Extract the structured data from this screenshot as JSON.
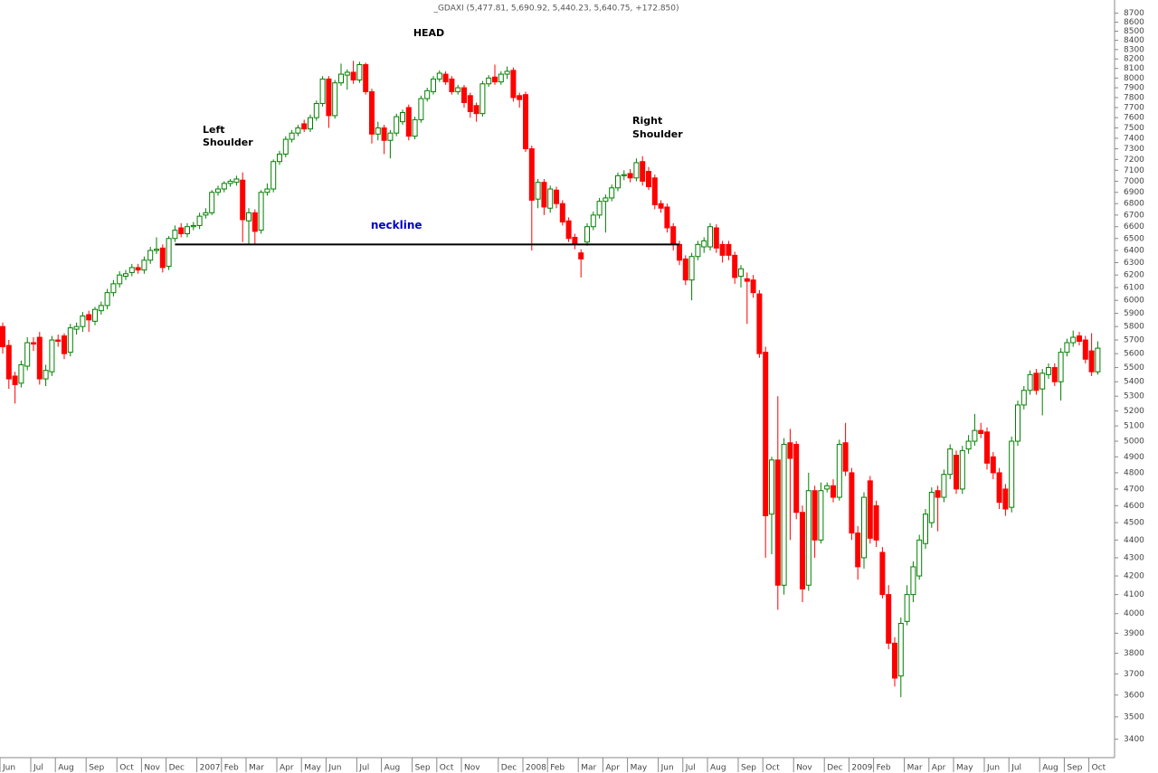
{
  "chart_data": {
    "type": "candlestick",
    "title": "_GDAXI (5,477.81, 5,690.92, 5,440.23, 5,640.75, +172.850)",
    "annotations": {
      "head": "HEAD",
      "left_shoulder": [
        "Left",
        "Shoulder"
      ],
      "right_shoulder": [
        "Right",
        "Shoulder"
      ]
    },
    "neckline": {
      "label": "neckline",
      "value": 6450,
      "start": 28,
      "end": 110,
      "color": "#000000",
      "label_color": "#0000cc"
    },
    "log_scale": true,
    "up_color": "#008000",
    "down_color": "#ff0000",
    "ylim": [
      3320,
      8850
    ],
    "yticks": [
      3400,
      3500,
      3600,
      3700,
      3800,
      3900,
      4000,
      4100,
      4200,
      4300,
      4400,
      4500,
      4600,
      4700,
      4800,
      4900,
      5000,
      5100,
      5200,
      5300,
      5400,
      5500,
      5600,
      5700,
      5800,
      5900,
      6000,
      6100,
      6200,
      6300,
      6400,
      6500,
      6600,
      6700,
      6800,
      6900,
      7000,
      7100,
      7200,
      7300,
      7400,
      7500,
      7600,
      7700,
      7800,
      7900,
      8000,
      8100,
      8200,
      8300,
      8400,
      8500,
      8600,
      8700
    ],
    "categories": [
      "Jun",
      null,
      null,
      null,
      null,
      "Jul",
      null,
      null,
      null,
      "Aug",
      null,
      null,
      null,
      null,
      "Sep",
      null,
      null,
      null,
      null,
      "Oct",
      null,
      null,
      null,
      "Nov",
      null,
      null,
      null,
      "Dec",
      null,
      null,
      null,
      null,
      "2007",
      null,
      null,
      null,
      "Feb",
      null,
      null,
      null,
      "Mar",
      null,
      null,
      null,
      null,
      "Apr",
      null,
      null,
      null,
      "May",
      null,
      null,
      null,
      "Jun",
      null,
      null,
      null,
      null,
      "Jul",
      null,
      null,
      null,
      "Aug",
      null,
      null,
      null,
      null,
      "Sep",
      null,
      null,
      null,
      "Oct",
      null,
      null,
      null,
      "Nov",
      null,
      null,
      null,
      null,
      null,
      "Dec",
      null,
      null,
      null,
      "2008",
      null,
      null,
      null,
      "Feb",
      null,
      null,
      null,
      null,
      "Mar",
      null,
      null,
      null,
      "Apr",
      null,
      null,
      null,
      "May",
      null,
      null,
      null,
      null,
      "Jun",
      null,
      null,
      null,
      "Jul",
      null,
      null,
      null,
      "Aug",
      null,
      null,
      null,
      null,
      "Sep",
      null,
      null,
      null,
      "Oct",
      null,
      null,
      null,
      null,
      "Nov",
      null,
      null,
      null,
      null,
      "Dec",
      null,
      null,
      null,
      "2009",
      null,
      null,
      null,
      "Feb",
      null,
      null,
      null,
      null,
      "Mar",
      null,
      null,
      null,
      "Apr",
      null,
      null,
      null,
      "May",
      null,
      null,
      null,
      null,
      "Jun",
      null,
      null,
      null,
      "Jul",
      null,
      null,
      null,
      null,
      "Aug",
      null,
      null,
      null,
      "Sep",
      null,
      null,
      null,
      "Oct",
      null
    ],
    "open": [
      5800,
      5660,
      5440,
      5390,
      5510,
      5680,
      5720,
      5420,
      5470,
      5700,
      5730,
      5610,
      5780,
      5800,
      5890,
      5840,
      5920,
      5960,
      6060,
      6130,
      6190,
      6220,
      6260,
      6240,
      6320,
      6400,
      6420,
      6270,
      6500,
      6590,
      6540,
      6600,
      6610,
      6700,
      6720,
      6900,
      6930,
      6980,
      6990,
      7010,
      6650,
      6720,
      6570,
      6900,
      6930,
      7180,
      7250,
      7390,
      7450,
      7540,
      7490,
      7600,
      7740,
      7990,
      7620,
      7950,
      8030,
      8060,
      7980,
      8140,
      7860,
      7440,
      7500,
      7380,
      7450,
      7560,
      7700,
      7420,
      7580,
      7790,
      7860,
      7990,
      8040,
      7990,
      7860,
      7900,
      7820,
      7720,
      7640,
      7940,
      8010,
      7960,
      8040,
      8080,
      7820,
      7830,
      7300,
      6840,
      6990,
      6760,
      6920,
      6800,
      6650,
      6510,
      6380,
      6470,
      6600,
      6700,
      6820,
      6850,
      6940,
      7050,
      7070,
      7030,
      7180,
      7090,
      7030,
      6800,
      6770,
      6600,
      6450,
      6330,
      6160,
      6350,
      6430,
      6430,
      6590,
      6450,
      6450,
      6360,
      6190,
      6170,
      6160,
      6050,
      5610,
      4550,
      4880,
      4150,
      4990,
      4980,
      4560,
      4150,
      4690,
      4400,
      4700,
      4720,
      4650,
      4990,
      4800,
      4440,
      4300,
      4750,
      4600,
      4330,
      4100,
      3850,
      3690,
      3960,
      4100,
      4200,
      4380,
      4500,
      4690,
      4650,
      4790,
      4910,
      4700,
      4950,
      5000,
      5070,
      5060,
      4900,
      4800,
      4700,
      4590,
      5000,
      5240,
      5340,
      5460,
      5350,
      5450,
      5500,
      5400,
      5610,
      5680,
      5730,
      5700,
      5620,
      5470
    ],
    "high": [
      5830,
      5700,
      5470,
      5550,
      5720,
      5720,
      5760,
      5520,
      5730,
      5740,
      5750,
      5820,
      5830,
      5910,
      5920,
      5950,
      5990,
      6090,
      6160,
      6230,
      6240,
      6290,
      6290,
      6350,
      6430,
      6510,
      6450,
      6520,
      6610,
      6630,
      6630,
      6640,
      6720,
      6760,
      6920,
      6960,
      7000,
      7020,
      7050,
      7080,
      6760,
      6750,
      6920,
      6980,
      7200,
      7280,
      7420,
      7480,
      7530,
      7580,
      7630,
      7770,
      8020,
      8020,
      7980,
      8150,
      8090,
      8180,
      8170,
      8160,
      7890,
      7560,
      7530,
      7480,
      7640,
      7680,
      7730,
      7610,
      7820,
      7900,
      8020,
      8080,
      8070,
      8020,
      7930,
      7930,
      7850,
      7750,
      7970,
      8030,
      8140,
      8070,
      8120,
      8110,
      7850,
      7860,
      7330,
      7020,
      7020,
      6960,
      6950,
      6830,
      6680,
      6540,
      6410,
      6630,
      6730,
      6850,
      6880,
      6970,
      7080,
      7100,
      7110,
      7210,
      7230,
      7130,
      7060,
      6830,
      6800,
      6630,
      6480,
      6360,
      6380,
      6480,
      6510,
      6630,
      6620,
      6480,
      6480,
      6390,
      6280,
      6220,
      6200,
      6080,
      5650,
      4900,
      5300,
      5020,
      5080,
      5000,
      4600,
      4800,
      4720,
      4740,
      4740,
      4760,
      5010,
      5120,
      4830,
      4480,
      4680,
      4780,
      4630,
      4360,
      4150,
      3880,
      3980,
      4150,
      4280,
      4430,
      4580,
      4710,
      4720,
      4820,
      4980,
      4940,
      4970,
      5040,
      5180,
      5120,
      5090,
      4930,
      4830,
      4730,
      5030,
      5270,
      5370,
      5480,
      5490,
      5490,
      5530,
      5530,
      5640,
      5710,
      5770,
      5760,
      5730,
      5750,
      5690
    ],
    "low": [
      5600,
      5350,
      5250,
      5360,
      5480,
      5620,
      5380,
      5370,
      5440,
      5650,
      5560,
      5580,
      5740,
      5760,
      5760,
      5810,
      5890,
      5930,
      6030,
      6100,
      6160,
      6190,
      6210,
      6210,
      6290,
      6370,
      6220,
      6240,
      6470,
      6510,
      6510,
      6570,
      6580,
      6670,
      6700,
      6870,
      6900,
      6950,
      6960,
      6470,
      6450,
      6450,
      6540,
      6870,
      6900,
      7150,
      7220,
      7360,
      7420,
      7460,
      7460,
      7570,
      7710,
      7500,
      7590,
      7920,
      7880,
      7940,
      7950,
      7830,
      7350,
      7380,
      7250,
      7210,
      7420,
      7530,
      7380,
      7390,
      7550,
      7760,
      7830,
      7960,
      7930,
      7830,
      7830,
      7700,
      7600,
      7560,
      7610,
      7910,
      7930,
      7930,
      7990,
      7760,
      7700,
      7270,
      6400,
      6760,
      6700,
      6720,
      6760,
      6610,
      6470,
      6410,
      6180,
      6440,
      6570,
      6670,
      6550,
      6820,
      6910,
      7010,
      6990,
      7000,
      6960,
      6920,
      6750,
      6720,
      6550,
      6400,
      6280,
      6120,
      6000,
      6320,
      6380,
      6400,
      6380,
      6300,
      6320,
      6130,
      6100,
      5820,
      6020,
      5570,
      4300,
      4320,
      4020,
      4100,
      4400,
      4520,
      4060,
      4120,
      4300,
      4380,
      4680,
      4620,
      4630,
      4780,
      4400,
      4180,
      4240,
      4380,
      4360,
      4080,
      3820,
      3640,
      3590,
      3940,
      4060,
      4180,
      4350,
      4470,
      4450,
      4620,
      4760,
      4670,
      4670,
      4920,
      4970,
      5020,
      4820,
      4760,
      4580,
      4540,
      4560,
      4970,
      5210,
      5310,
      5310,
      5170,
      5420,
      5370,
      5270,
      5580,
      5650,
      5660,
      5530,
      5440,
      5450
    ],
    "close": [
      5650,
      5420,
      5380,
      5520,
      5680,
      5670,
      5420,
      5480,
      5700,
      5690,
      5600,
      5790,
      5800,
      5880,
      5850,
      5930,
      5960,
      6060,
      6130,
      6200,
      6210,
      6260,
      6240,
      6320,
      6400,
      6410,
      6260,
      6500,
      6570,
      6540,
      6600,
      6610,
      6690,
      6720,
      6900,
      6930,
      6980,
      7000,
      7020,
      6660,
      6720,
      6560,
      6900,
      6930,
      7180,
      7250,
      7390,
      7450,
      7500,
      7490,
      7600,
      7740,
      7990,
      7620,
      7950,
      8040,
      8060,
      7980,
      8140,
      7860,
      7440,
      7500,
      7380,
      7450,
      7610,
      7650,
      7420,
      7580,
      7790,
      7870,
      7990,
      8050,
      7960,
      7860,
      7900,
      7750,
      7660,
      7640,
      7940,
      8000,
      7960,
      8040,
      8070,
      7800,
      7780,
      7300,
      6830,
      6990,
      6770,
      6930,
      6800,
      6640,
      6500,
      6460,
      6330,
      6600,
      6700,
      6820,
      6850,
      6940,
      7050,
      7060,
      7030,
      7170,
      7000,
      6950,
      6790,
      6760,
      6590,
      6450,
      6320,
      6160,
      6350,
      6450,
      6480,
      6600,
      6420,
      6360,
      6360,
      6180,
      6250,
      6150,
      6060,
      5600,
      4540,
      4880,
      4150,
      4980,
      4890,
      4560,
      4130,
      4690,
      4400,
      4690,
      4720,
      4650,
      4980,
      4810,
      4440,
      4250,
      4650,
      4410,
      4400,
      4100,
      3850,
      3680,
      3950,
      4100,
      4250,
      4400,
      4550,
      4680,
      4650,
      4790,
      4950,
      4700,
      4940,
      5000,
      5070,
      5050,
      4860,
      4800,
      4620,
      4580,
      5000,
      5240,
      5340,
      5450,
      5340,
      5460,
      5500,
      5400,
      5610,
      5680,
      5720,
      5690,
      5560,
      5470,
      5640
    ]
  }
}
